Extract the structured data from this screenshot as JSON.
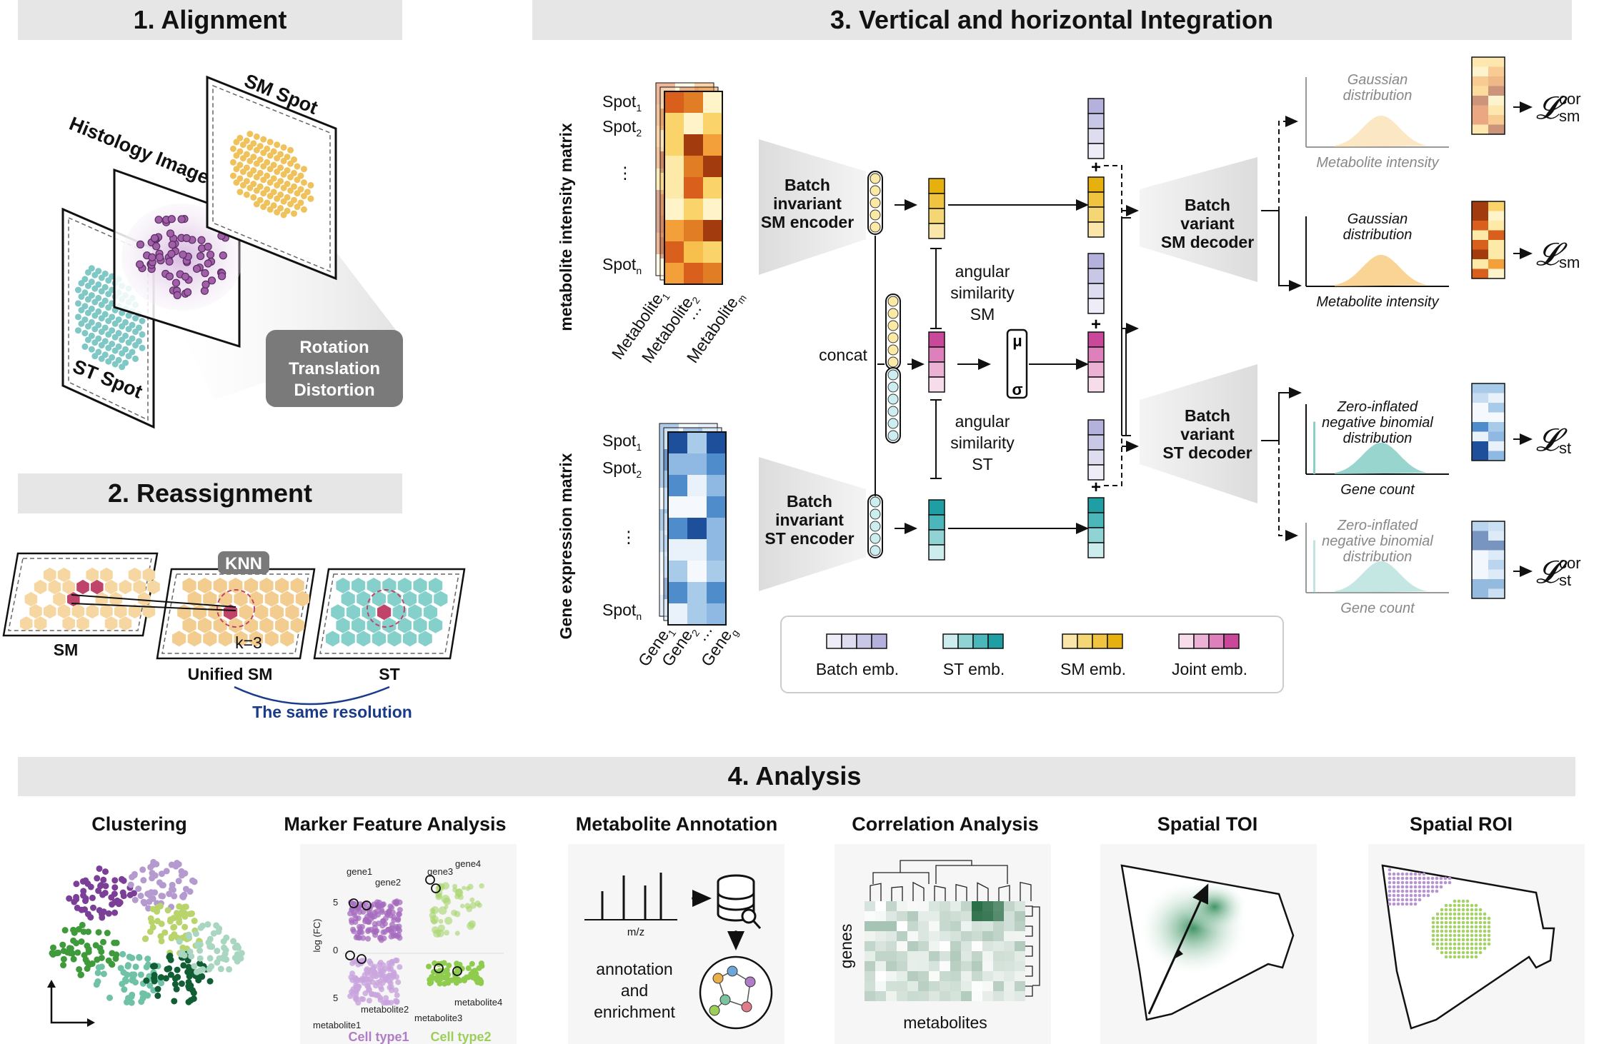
{
  "sections": {
    "alignment": "1. Alignment",
    "reassignment": "2.  Reassignment",
    "integration": "3. Vertical and horizontal Integration",
    "analysis": "4. Analysis"
  },
  "alignment": {
    "sm_spot": "SM Spot",
    "histology": "Histology Image",
    "st_spot": "ST Spot",
    "transform": [
      "Rotation",
      "Translation",
      "Distortion"
    ]
  },
  "reassignment": {
    "knn": "KNN",
    "k": "k=3",
    "sm": "SM",
    "unified_sm": "Unified SM",
    "st": "ST",
    "same_res": "The same resolution"
  },
  "integration": {
    "sm_matrix_title": "metabolite intensity matrix",
    "st_matrix_title": "Gene expression matrix",
    "sm_rows": [
      "Spot",
      "Spot",
      "⋮",
      "Spot"
    ],
    "sm_row_subs": [
      "1",
      "2",
      "",
      "n"
    ],
    "sm_cols": [
      "Metabolite",
      "Metabolite",
      "…",
      "Metabolite"
    ],
    "sm_col_subs": [
      "1",
      "2",
      "",
      "m"
    ],
    "st_rows": [
      "Spot",
      "Spot",
      "⋮",
      "Spot"
    ],
    "st_row_subs": [
      "1",
      "2",
      "",
      "n"
    ],
    "st_cols": [
      "Gene",
      "Gene",
      "…",
      "Gene"
    ],
    "st_col_subs": [
      "1",
      "2",
      "",
      "g"
    ],
    "sm_encoder": [
      "Batch",
      "invariant",
      "SM encoder"
    ],
    "st_encoder": [
      "Batch",
      "invariant",
      "ST encoder"
    ],
    "concat": "concat",
    "angular_sm": [
      "angular",
      "similarity",
      "SM"
    ],
    "angular_st": [
      "angular",
      "similarity",
      "ST"
    ],
    "mu": "μ",
    "sigma": "σ",
    "plus": "+",
    "sm_decoder": [
      "Batch",
      "variant",
      "SM decoder"
    ],
    "st_decoder": [
      "Batch",
      "variant",
      "ST decoder"
    ],
    "gaussian": [
      "Gaussian",
      "distribution"
    ],
    "metabolite_intensity": "Metabolite intensity",
    "zinb": [
      "Zero-inflated",
      "negative binomial",
      "distribution"
    ],
    "gene_count": "Gene count",
    "loss_symbol": "𝓛",
    "loss_cor": "cor",
    "loss_sm": "sm",
    "loss_st": "st",
    "legend": [
      "Batch emb.",
      "ST emb.",
      "SM emb.",
      "Joint emb."
    ]
  },
  "analysis": {
    "panels": [
      "Clustering",
      "Marker Feature Analysis",
      "Metabolite Annotation",
      "Correlation Analysis",
      "Spatial TOI",
      "Spatial ROI"
    ],
    "marker": {
      "genes": [
        "gene1",
        "gene2",
        "gene3",
        "gene4"
      ],
      "metabolites": [
        "metabolite1",
        "metabolite2",
        "metabolite3",
        "metabolite4"
      ],
      "ylabel": "log (FC)",
      "ticks": [
        "5",
        "0",
        "5"
      ],
      "cell_types": [
        "Cell type1",
        "Cell type2"
      ]
    },
    "annotation": {
      "mz": "m/z",
      "text": [
        "annotation",
        "and",
        "enrichment"
      ]
    },
    "correlation": {
      "ylabel": "genes",
      "xlabel": "metabolites"
    }
  },
  "colors": {
    "sm": "#f0c25c",
    "st": "#7fc8c5",
    "joint": "#cf6aa8",
    "batch": "#a9a6d6",
    "header_bg": "#e6e6e6",
    "blue_text": "#1a3a8a"
  }
}
